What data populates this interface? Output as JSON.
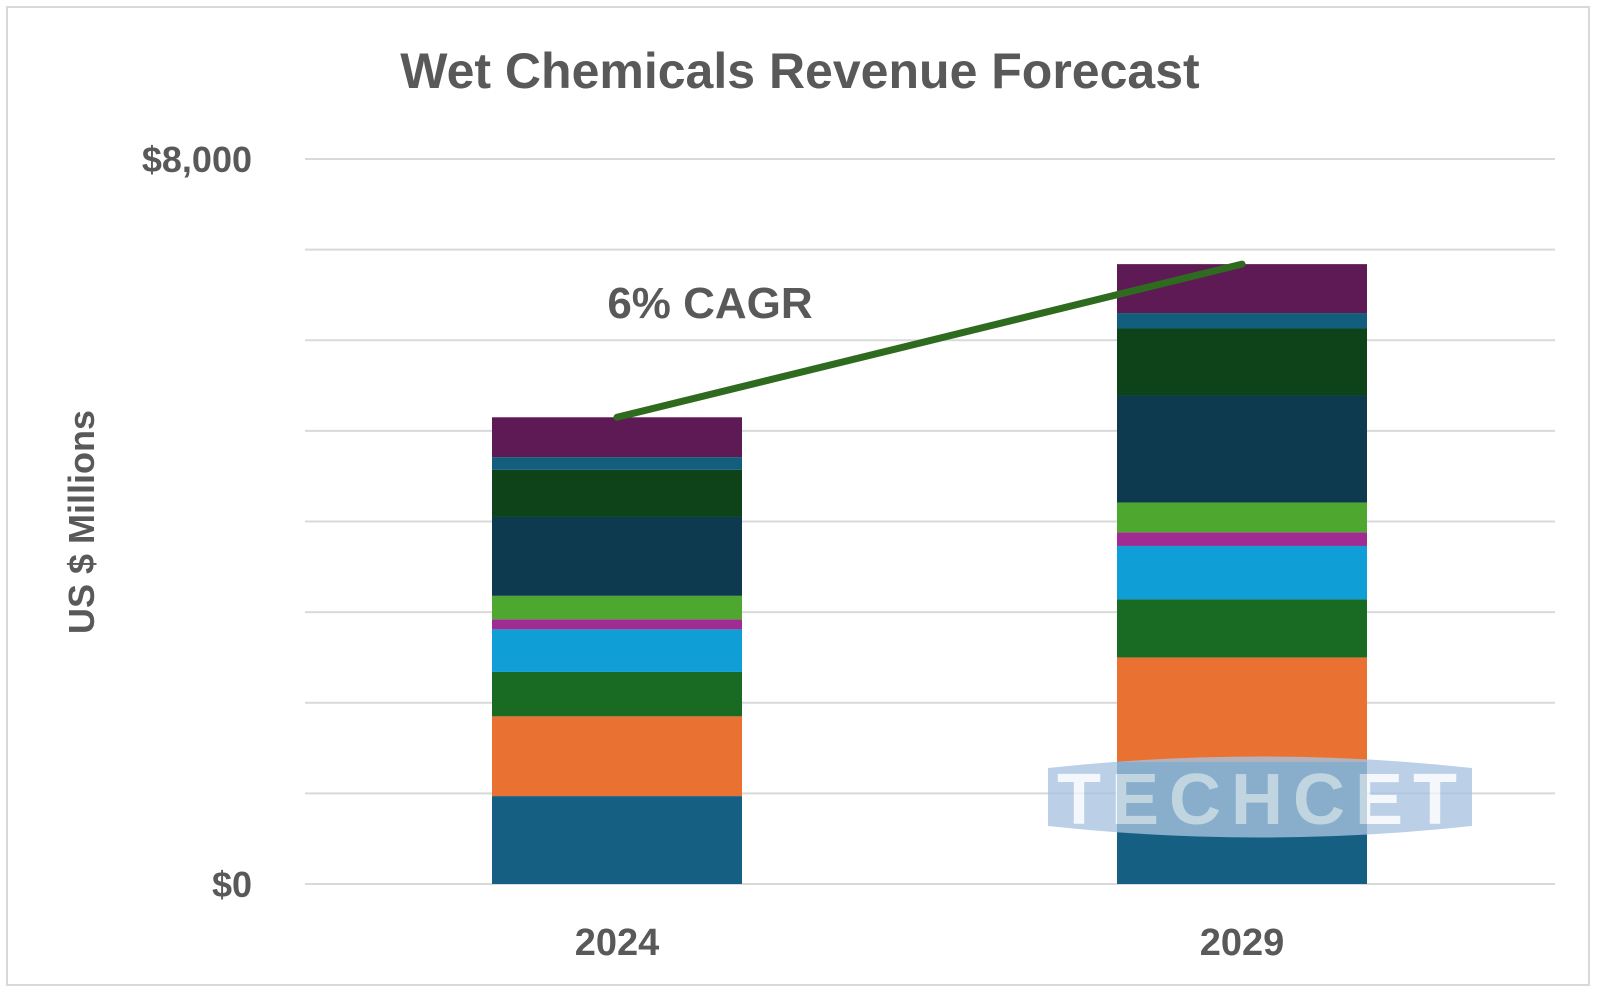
{
  "chart_data": {
    "type": "bar",
    "stacked": true,
    "title": "Wet Chemicals Revenue Forecast",
    "xlabel": "",
    "ylabel": "US $ Millions",
    "ylim": [
      0,
      8000
    ],
    "grid": true,
    "tick_step": 1000,
    "y_tick_labels": [
      {
        "value": 8000,
        "label": "$8,000"
      },
      {
        "value": 0,
        "label": "$0"
      }
    ],
    "categories": [
      "2024",
      "2029"
    ],
    "series": [
      {
        "color": "#156082",
        "values": [
          970,
          1350
        ]
      },
      {
        "color": "#E97132",
        "values": [
          880,
          1150
        ]
      },
      {
        "color": "#196B24",
        "values": [
          490,
          640
        ]
      },
      {
        "color": "#0F9ED5",
        "values": [
          470,
          590
        ]
      },
      {
        "color": "#A02B93",
        "values": [
          110,
          150
        ]
      },
      {
        "color": "#4EA72E",
        "values": [
          260,
          330
        ]
      },
      {
        "color": "#0E3A4F",
        "values": [
          870,
          1180
        ]
      },
      {
        "color": "#0E4219",
        "values": [
          520,
          740
        ]
      },
      {
        "color": "#125E7C",
        "values": [
          140,
          170
        ]
      },
      {
        "color": "#5E1A55",
        "values": [
          440,
          540
        ]
      }
    ],
    "annotation": {
      "text": "6% CAGR",
      "line_color": "#2E6B1F",
      "from_value": 5150,
      "to_value": 6840
    }
  },
  "watermark": {
    "text": "TECHCET",
    "color": "#A9C4E0"
  }
}
